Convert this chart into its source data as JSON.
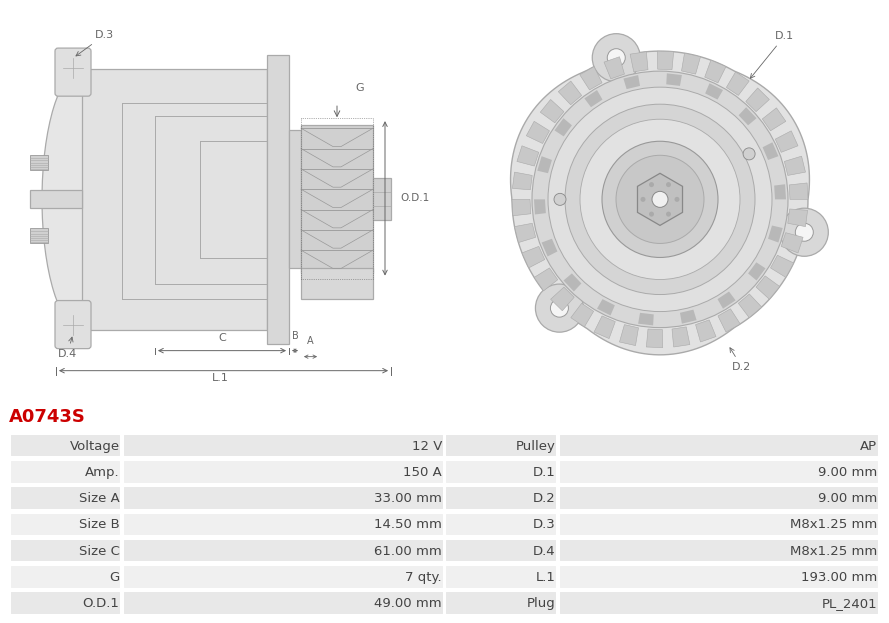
{
  "title": "A0743S",
  "title_color": "#cc0000",
  "background_color": "#ffffff",
  "table_data": [
    [
      "Voltage",
      "12 V",
      "Pulley",
      "AP"
    ],
    [
      "Amp.",
      "150 A",
      "D.1",
      "9.00 mm"
    ],
    [
      "Size A",
      "33.00 mm",
      "D.2",
      "9.00 mm"
    ],
    [
      "Size B",
      "14.50 mm",
      "D.3",
      "M8x1.25 mm"
    ],
    [
      "Size C",
      "61.00 mm",
      "D.4",
      "M8x1.25 mm"
    ],
    [
      "G",
      "7 qty.",
      "L.1",
      "193.00 mm"
    ],
    [
      "O.D.1",
      "49.00 mm",
      "Plug",
      "PL_2401"
    ]
  ],
  "row_bg_odd": "#e8e8e8",
  "row_bg_even": "#f0f0f0",
  "border_color": "#ffffff",
  "text_color": "#444444",
  "font_size": 9.5,
  "title_fontsize": 13
}
